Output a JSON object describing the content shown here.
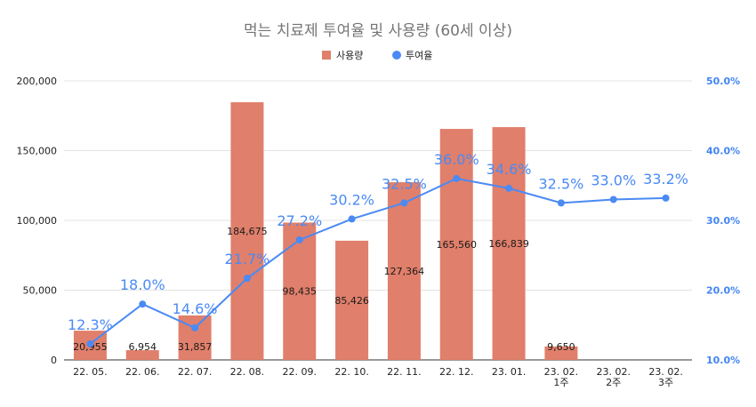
{
  "chart_data": {
    "type": "bar+line",
    "title": "먹는 치료제 투여율 및 사용량 (60세 이상)",
    "legend": [
      {
        "name": "사용량",
        "color": "#e07f6b",
        "kind": "bar"
      },
      {
        "name": "투여율",
        "color": "#4a8af4",
        "kind": "line"
      }
    ],
    "categories": [
      [
        "22. 05."
      ],
      [
        "22. 06."
      ],
      [
        "22. 07."
      ],
      [
        "22. 08."
      ],
      [
        "22. 09."
      ],
      [
        "22. 10."
      ],
      [
        "22. 11."
      ],
      [
        "22. 12."
      ],
      [
        "23. 01."
      ],
      [
        "23. 02.",
        "1주"
      ],
      [
        "23. 02.",
        "2주"
      ],
      [
        "23. 02.",
        "3주"
      ]
    ],
    "series": [
      {
        "name": "사용량",
        "type": "bar",
        "axis": "left",
        "values": [
          20955,
          6954,
          31857,
          184675,
          98435,
          85426,
          127364,
          165560,
          166839,
          9650,
          null,
          null
        ],
        "labels": [
          "20,955",
          "6,954",
          "31,857",
          "184,675",
          "98,435",
          "85,426",
          "127,364",
          "165,560",
          "166,839",
          "9,650",
          "",
          ""
        ]
      },
      {
        "name": "투여율",
        "type": "line",
        "axis": "right",
        "values": [
          12.3,
          18.0,
          14.6,
          21.7,
          27.2,
          30.2,
          32.5,
          36.0,
          34.6,
          32.5,
          33.0,
          33.2
        ],
        "labels": [
          "12.3%",
          "18.0%",
          "14.6%",
          "21.7%",
          "27.2%",
          "30.2%",
          "32.5%",
          "36.0%",
          "34.6%",
          "32.5%",
          "33.0%",
          "33.2%"
        ]
      }
    ],
    "y_left": {
      "min": 0,
      "max": 200000,
      "ticks": [
        0,
        50000,
        100000,
        150000,
        200000
      ],
      "tick_labels": [
        "0",
        "50,000",
        "100,000",
        "150,000",
        "200,000"
      ]
    },
    "y_right": {
      "min": 10,
      "max": 50,
      "ticks": [
        10,
        20,
        30,
        40,
        50
      ],
      "tick_labels": [
        "10.0%",
        "20.0%",
        "30.0%",
        "40.0%",
        "50.0%"
      ]
    },
    "grid": true,
    "legend_position": "top-center"
  }
}
